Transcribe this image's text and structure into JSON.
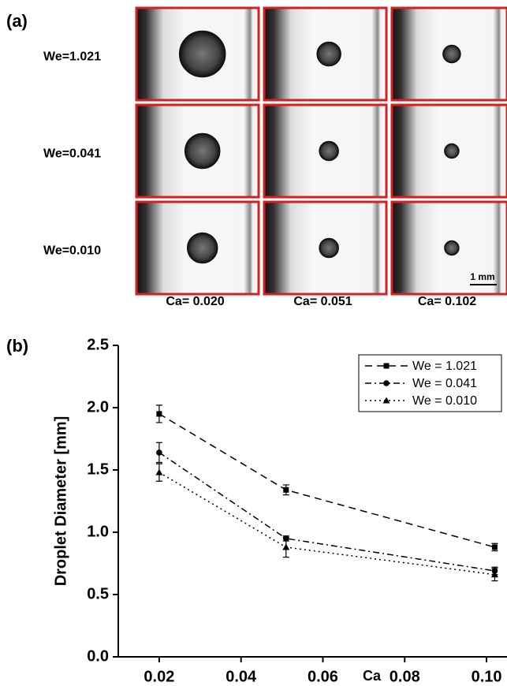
{
  "panel_a": {
    "label": "(a)",
    "rows": [
      "We=1.021",
      "We=0.041",
      "We=0.010"
    ],
    "columns": [
      "Ca= 0.020",
      "Ca= 0.051",
      "Ca= 0.102"
    ],
    "scale_bar": "1 mm"
  },
  "chart_data": {
    "type": "line",
    "panel_label": "(b)",
    "x_label": "Ca",
    "y_label": "Droplet Diameter [mm]",
    "x": [
      0.02,
      0.051,
      0.102
    ],
    "series": [
      {
        "name": "We = 1.021",
        "color": "#000000",
        "dash": "9,6",
        "marker": "square",
        "values": [
          1.95,
          1.34,
          0.88
        ],
        "errors": [
          0.07,
          0.04,
          0.03
        ]
      },
      {
        "name": "We = 0.041",
        "color": "#000000",
        "dash": "8,4,2,4",
        "marker": "circle",
        "values": [
          1.64,
          0.95,
          0.69
        ],
        "errors": [
          0.08,
          0.02,
          0.03
        ]
      },
      {
        "name": "We = 0.010",
        "color": "#000000",
        "dash": "2,4",
        "marker": "triangle",
        "values": [
          1.48,
          0.88,
          0.66
        ],
        "errors": [
          0.07,
          0.08,
          0.05
        ]
      }
    ],
    "xlim": [
      0.01,
      0.105
    ],
    "xticks": [
      0.02,
      0.04,
      0.06,
      0.08,
      {
        "value": 0.1,
        "label": "0.10"
      }
    ],
    "ylim": [
      0,
      2.5
    ],
    "yticks": [
      {
        "value": 0,
        "label": "0.0"
      },
      0.5,
      {
        "value": 1,
        "label": "1.0"
      },
      1.5,
      {
        "value": 2,
        "label": "2.0"
      },
      2.5
    ],
    "legend": "top-right"
  }
}
